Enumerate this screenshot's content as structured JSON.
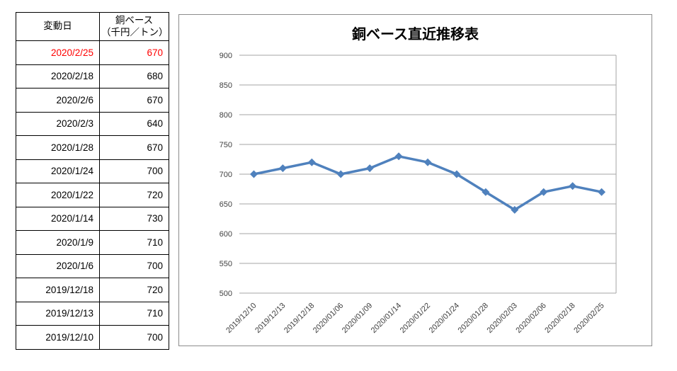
{
  "table": {
    "headers": {
      "date": "変動日",
      "value_line1": "銅ベース",
      "value_line2": "（千円／トン）"
    },
    "rows": [
      {
        "date": "2020/2/25",
        "value": "670",
        "highlight": true
      },
      {
        "date": "2020/2/18",
        "value": "680",
        "highlight": false
      },
      {
        "date": "2020/2/6",
        "value": "670",
        "highlight": false
      },
      {
        "date": "2020/2/3",
        "value": "640",
        "highlight": false
      },
      {
        "date": "2020/1/28",
        "value": "670",
        "highlight": false
      },
      {
        "date": "2020/1/24",
        "value": "700",
        "highlight": false
      },
      {
        "date": "2020/1/22",
        "value": "720",
        "highlight": false
      },
      {
        "date": "2020/1/14",
        "value": "730",
        "highlight": false
      },
      {
        "date": "2020/1/9",
        "value": "710",
        "highlight": false
      },
      {
        "date": "2020/1/6",
        "value": "700",
        "highlight": false
      },
      {
        "date": "2019/12/18",
        "value": "720",
        "highlight": false
      },
      {
        "date": "2019/12/13",
        "value": "710",
        "highlight": false
      },
      {
        "date": "2019/12/10",
        "value": "700",
        "highlight": false
      }
    ],
    "highlight_color": "#FF0000"
  },
  "chart_data": {
    "type": "line",
    "title": "銅ベース直近推移表",
    "x": [
      "2019/12/10",
      "2019/12/13",
      "2019/12/18",
      "2020/01/06",
      "2020/01/09",
      "2020/01/14",
      "2020/01/22",
      "2020/01/24",
      "2020/01/28",
      "2020/02/03",
      "2020/02/06",
      "2020/02/18",
      "2020/02/25"
    ],
    "values": [
      700,
      710,
      720,
      700,
      710,
      730,
      720,
      700,
      670,
      640,
      670,
      680,
      670
    ],
    "xlabel": "",
    "ylabel": "",
    "ylim": [
      500,
      900
    ],
    "ytick_step": 50,
    "grid": true,
    "legend": "none",
    "line_color": "#4F81BD",
    "marker": "diamond",
    "grid_color": "#A6A6A6",
    "label_color": "#404040"
  }
}
